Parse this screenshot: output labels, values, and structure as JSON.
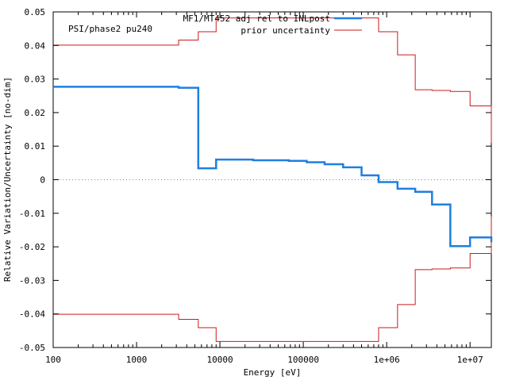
{
  "chart_data": {
    "type": "line",
    "style": "step",
    "xlabel": "Energy [eV]",
    "ylabel": "Relative Variation/Uncertainty [no-dim]",
    "annotation": "PSI/phase2 pu240",
    "x_scale": "log",
    "xlim": [
      100,
      18000000
    ],
    "ylim": [
      -0.05,
      0.05
    ],
    "x_ticks": [
      {
        "value": 100,
        "label": "100"
      },
      {
        "value": 1000,
        "label": "1000"
      },
      {
        "value": 10000,
        "label": "10000"
      },
      {
        "value": 100000,
        "label": "100000"
      },
      {
        "value": 1000000,
        "label": "1e+06"
      },
      {
        "value": 10000000,
        "label": "1e+07"
      }
    ],
    "y_ticks": [
      {
        "value": 0.05,
        "label": "0.05"
      },
      {
        "value": 0.04,
        "label": "0.04"
      },
      {
        "value": 0.03,
        "label": "0.03"
      },
      {
        "value": 0.02,
        "label": "0.02"
      },
      {
        "value": 0.01,
        "label": "0.01"
      },
      {
        "value": 0,
        "label": "0"
      },
      {
        "value": -0.01,
        "label": "-0.01"
      },
      {
        "value": -0.02,
        "label": "-0.02"
      },
      {
        "value": -0.03,
        "label": "-0.03"
      },
      {
        "value": -0.04,
        "label": "-0.04"
      },
      {
        "value": -0.05,
        "label": "-0.05"
      }
    ],
    "zero_line": true,
    "legend_position": "top-right",
    "bin_edges": [
      100,
      2000,
      3200,
      5500,
      9000,
      25000,
      67000,
      110000,
      180000,
      300000,
      500000,
      800000,
      1350000,
      2200000,
      3500000,
      5800000,
      10000000,
      18000000
    ],
    "series": [
      {
        "name": "MF1/MT452 adj rel to INLpost",
        "color": "#1f7fe0",
        "values": [
          0.0277,
          0.0277,
          0.0274,
          0.0034,
          0.006,
          0.0058,
          0.0056,
          0.0052,
          0.0046,
          0.0037,
          0.0013,
          -0.0007,
          -0.0027,
          -0.0036,
          -0.0074,
          -0.0198,
          -0.0172,
          -0.0186
        ]
      },
      {
        "name": "prior uncertainty",
        "color": "#cc1a1a",
        "values": [
          0.0401,
          0.0401,
          0.0416,
          0.0441,
          0.0482,
          0.0482,
          0.0482,
          0.0482,
          0.0482,
          0.0482,
          0.0482,
          0.0441,
          0.0372,
          0.0268,
          0.0266,
          0.0263,
          0.022,
          0.0109
        ],
        "mirror": true
      }
    ]
  }
}
